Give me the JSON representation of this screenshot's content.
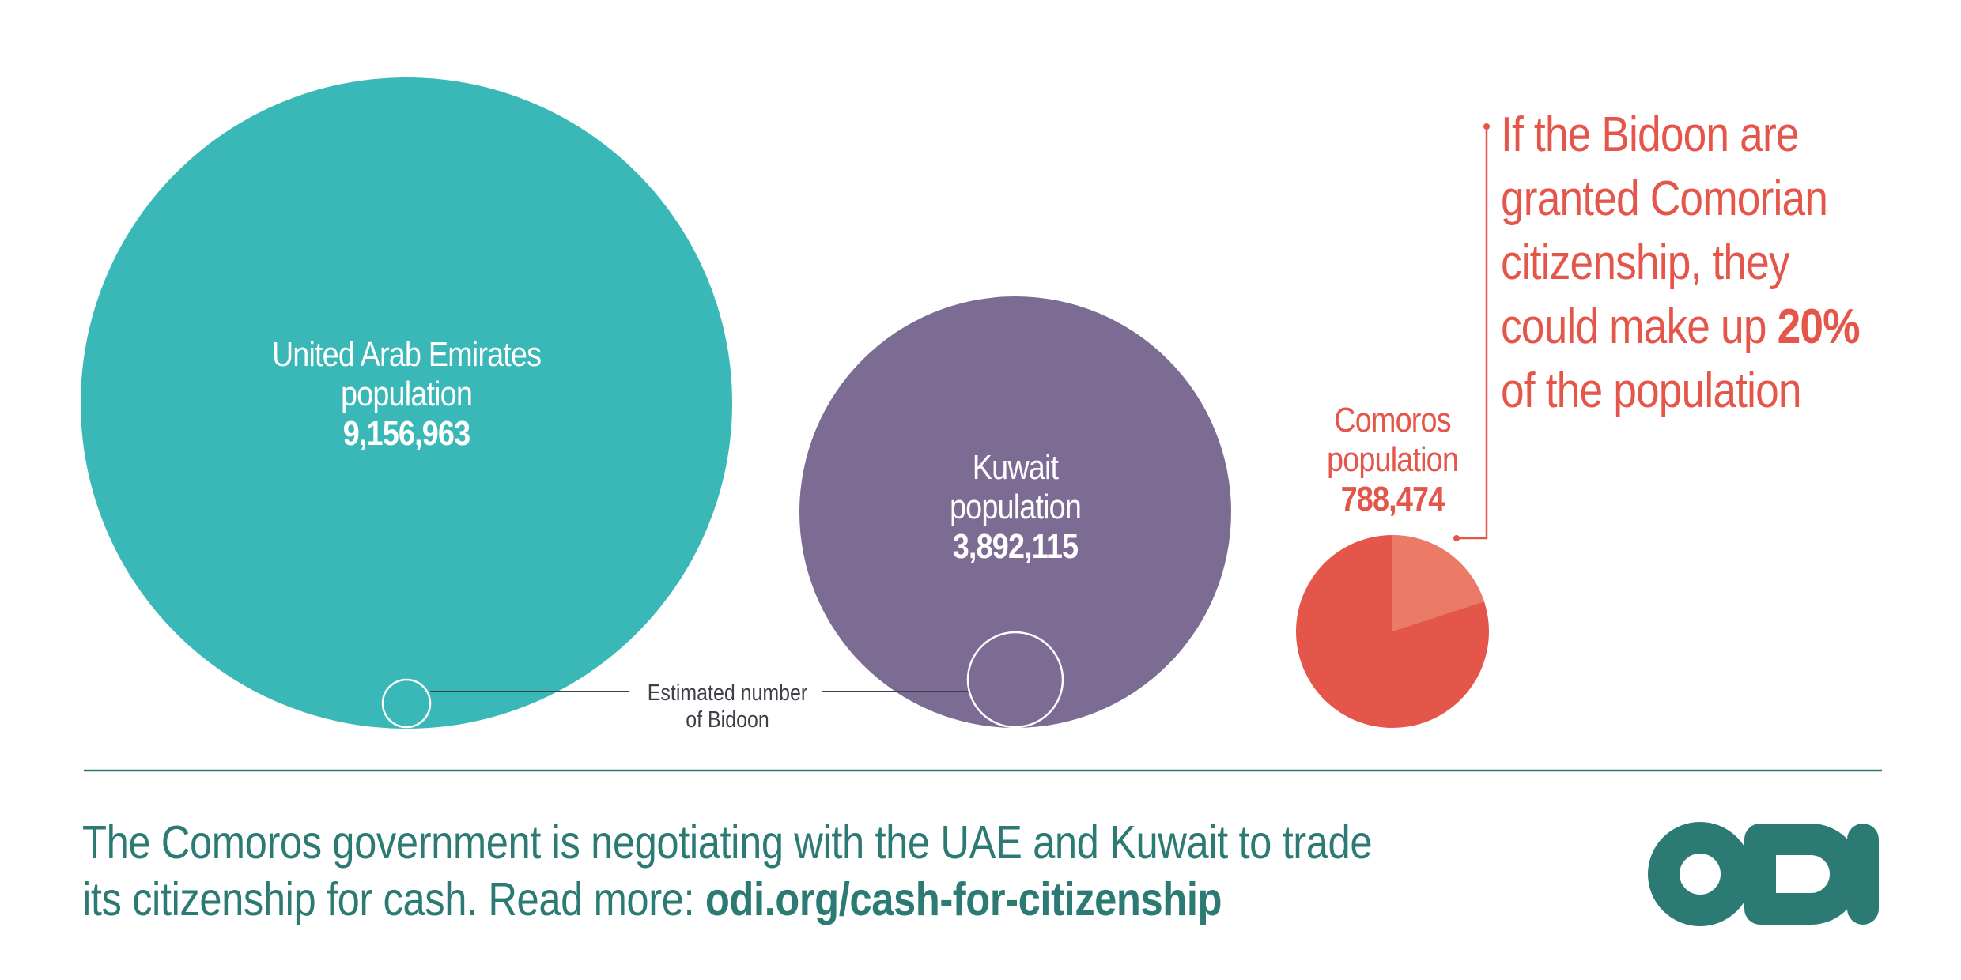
{
  "bubbles": {
    "uae": {
      "name": "United Arab Emirates",
      "sub": "population",
      "value": "9,156,963",
      "color": "#3ab8b8"
    },
    "kuwait": {
      "name": "Kuwait",
      "sub": "population",
      "value": "3,892,115",
      "color": "#7c6c94"
    },
    "comoros": {
      "name": "Comoros",
      "sub": "population",
      "value": "788,474",
      "color": "#e4554a",
      "bidoon_share_percent": 20,
      "bidoon_color": "#eb7b67"
    }
  },
  "bidoon_label": {
    "line1": "Estimated number",
    "line2": "of Bidoon"
  },
  "callout": {
    "line1": "If the Bidoon are",
    "line2": "granted Comorian",
    "line3": "citizenship, they",
    "line4": "could make up",
    "highlight": "20%",
    "line5": "of the population"
  },
  "footer": {
    "line1": "The Comoros government is negotiating with the UAE and Kuwait to trade",
    "line2_prefix": "its citizenship for cash. Read more:",
    "link": "odi.org/cash-for-citizenship"
  },
  "logo": {
    "text": "ODI",
    "color": "#2c7a74"
  },
  "colors": {
    "divider": "#2c7a74",
    "connector": "#3f3f4a"
  }
}
